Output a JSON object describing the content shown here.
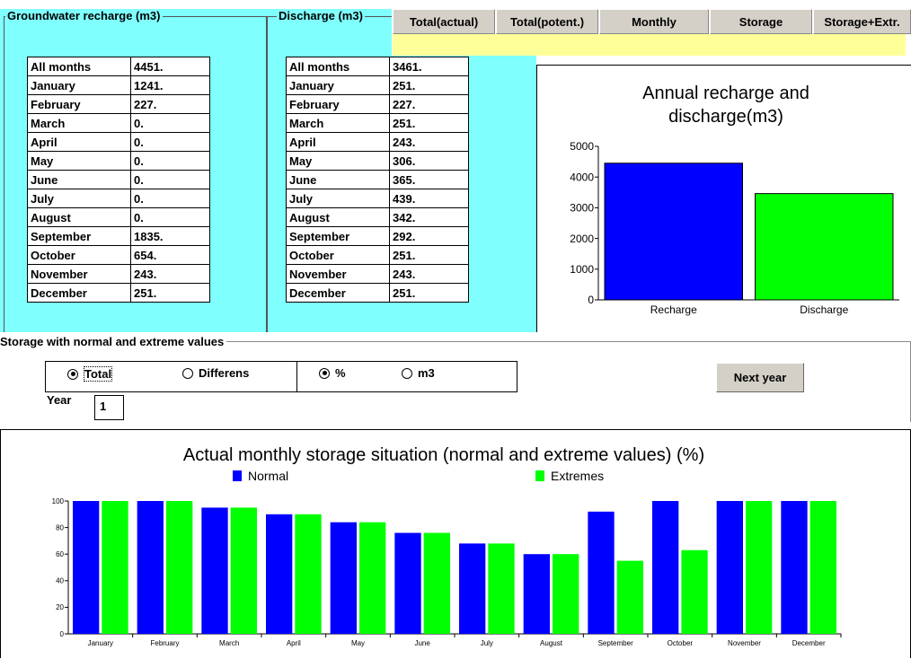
{
  "tabs": [
    "Total(actual)",
    "Total(potent.)",
    "Monthly",
    "Storage",
    "Storage+Extr."
  ],
  "recharge": {
    "title": "Groundwater recharge (m3)",
    "rows": [
      [
        "All months",
        "4451."
      ],
      [
        "January",
        "1241."
      ],
      [
        "February",
        "227."
      ],
      [
        "March",
        "0."
      ],
      [
        "April",
        "0."
      ],
      [
        "May",
        "0."
      ],
      [
        "June",
        "0."
      ],
      [
        "July",
        "0."
      ],
      [
        "August",
        "0."
      ],
      [
        "September",
        "1835."
      ],
      [
        "October",
        "654."
      ],
      [
        "November",
        "243."
      ],
      [
        "December",
        "251."
      ]
    ]
  },
  "discharge": {
    "title": "Discharge (m3)",
    "rows": [
      [
        "All months",
        "3461."
      ],
      [
        "January",
        "251."
      ],
      [
        "February",
        "227."
      ],
      [
        "March",
        "251."
      ],
      [
        "April",
        "243."
      ],
      [
        "May",
        "306."
      ],
      [
        "June",
        "365."
      ],
      [
        "July",
        "439."
      ],
      [
        "August",
        "342."
      ],
      [
        "September",
        "292."
      ],
      [
        "October",
        "251."
      ],
      [
        "November",
        "243."
      ],
      [
        "December",
        "251."
      ]
    ]
  },
  "storage": {
    "title": "Storage with normal and extreme values",
    "options": [
      {
        "label": "Total",
        "selected": true
      },
      {
        "label": "Differens",
        "selected": false
      },
      {
        "label": "%",
        "selected": true
      },
      {
        "label": "m3",
        "selected": false
      }
    ],
    "year_label": "Year",
    "year": "1",
    "button": "Next year"
  },
  "chart_data": [
    {
      "type": "bar",
      "title": "Annual recharge and discharge(m3)",
      "categories": [
        "Recharge",
        "Discharge"
      ],
      "values": [
        4451,
        3461
      ],
      "colors": [
        "#0000ff",
        "#00ff00"
      ],
      "ylim": [
        0,
        5000
      ],
      "yticks": [
        0,
        1000,
        2000,
        3000,
        4000,
        5000
      ],
      "grid": false
    },
    {
      "type": "bar",
      "title": "Actual monthly storage situation (normal and extreme values) (%)",
      "categories": [
        "January",
        "February",
        "March",
        "April",
        "May",
        "June",
        "July",
        "August",
        "September",
        "October",
        "November",
        "December"
      ],
      "series": [
        {
          "name": "Normal",
          "color": "#0000ff",
          "values": [
            100,
            100,
            95,
            90,
            84,
            76,
            68,
            60,
            92,
            100,
            100,
            100
          ]
        },
        {
          "name": "Extremes",
          "color": "#00ff00",
          "values": [
            100,
            100,
            95,
            90,
            84,
            76,
            68,
            60,
            55,
            63,
            100,
            100
          ]
        }
      ],
      "ylim": [
        0,
        100
      ],
      "yticks": [
        0,
        20,
        40,
        60,
        80,
        100
      ],
      "grid": false
    }
  ]
}
